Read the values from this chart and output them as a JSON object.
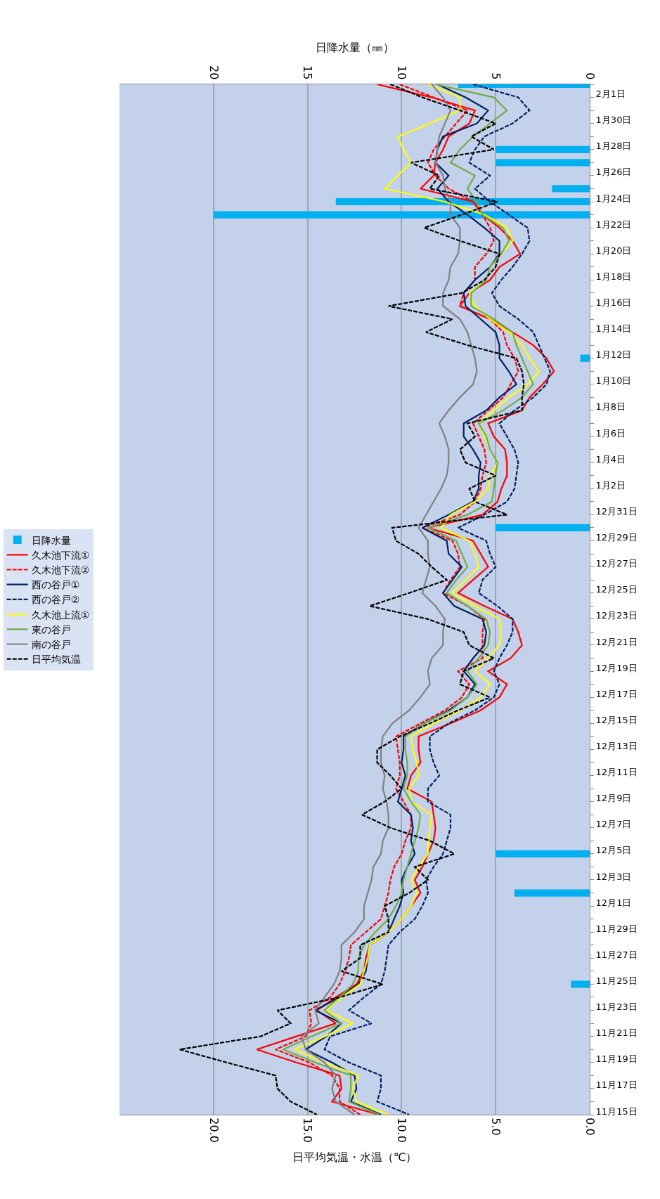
{
  "chart_data": {
    "type": "line",
    "orientation": "horizontal",
    "xlabel": "日平均気温・水温（℃）",
    "x2label": "日降水量（㎜）",
    "categories": [
      null,
      "2月1日",
      null,
      "1月30日",
      null,
      "1月28日",
      null,
      "1月26日",
      null,
      "1月24日",
      null,
      "1月22日",
      null,
      "1月20日",
      null,
      "1月18日",
      null,
      "1月16日",
      null,
      "1月14日",
      null,
      "1月12日",
      null,
      "1月10日",
      null,
      "1月8日",
      null,
      "1月6日",
      null,
      "1月4日",
      null,
      "1月2日",
      null,
      "12月31日",
      null,
      "12月29日",
      null,
      "12月27日",
      null,
      "12月25日",
      null,
      "12月23日",
      null,
      "12月21日",
      null,
      "12月19日",
      null,
      "12月17日",
      null,
      "12月15日",
      null,
      "12月13日",
      null,
      "12月11日",
      null,
      "12月9日",
      null,
      "12月7日",
      null,
      "12月5日",
      null,
      "12月3日",
      null,
      "12月1日",
      null,
      "11月29日",
      null,
      "11月27日",
      null,
      "11月25日",
      null,
      "11月23日",
      null,
      "11月21日",
      null,
      "11月19日",
      null,
      "11月17日",
      null,
      "11月15日"
    ],
    "xlim": [
      25,
      0
    ],
    "xticks": [
      {
        "value": 20,
        "label": "20.0"
      },
      {
        "value": 15,
        "label": "15.0"
      },
      {
        "value": 10,
        "label": "10.0"
      },
      {
        "value": 5,
        "label": "5.0"
      },
      {
        "value": 0,
        "label": "0.0"
      }
    ],
    "x2lim": [
      25,
      0
    ],
    "x2ticks": [
      20,
      15,
      10,
      5,
      0
    ],
    "grid": "x",
    "legend": "left",
    "marker": "none",
    "series": [
      {
        "name": "日降水量",
        "type": "bar",
        "axis": "x2",
        "color": "#00b0f0",
        "values": [
          7.0,
          null,
          null,
          null,
          null,
          5.0,
          5.0,
          null,
          2.0,
          13.5,
          20.0,
          null,
          null,
          null,
          null,
          null,
          null,
          null,
          null,
          null,
          null,
          0.5,
          null,
          null,
          null,
          null,
          null,
          null,
          null,
          null,
          null,
          null,
          null,
          null,
          5.0,
          null,
          null,
          null,
          null,
          null,
          null,
          null,
          null,
          null,
          null,
          null,
          null,
          null,
          null,
          null,
          null,
          null,
          null,
          null,
          null,
          null,
          null,
          null,
          null,
          5.0,
          null,
          null,
          4.0,
          null,
          null,
          null,
          null,
          null,
          null,
          1.0,
          null,
          null,
          null,
          null,
          null,
          null,
          null,
          null,
          null,
          null
        ]
      },
      {
        "name": "久木池下流①",
        "color": "#ff0000",
        "line_style": "solid",
        "values": [
          11.3,
          8.4,
          6.1,
          6.4,
          7.5,
          7.8,
          8.2,
          8.3,
          9.0,
          6.2,
          5.7,
          4.8,
          4.1,
          3.7,
          4.8,
          5.3,
          6.4,
          6.9,
          5.3,
          4.1,
          3.0,
          2.3,
          1.9,
          2.5,
          3.2,
          3.6,
          5.4,
          5.1,
          4.5,
          4.4,
          4.4,
          4.7,
          4.9,
          5.7,
          8.6,
          6.2,
          5.8,
          5.4,
          6.2,
          7.0,
          5.6,
          4.1,
          3.8,
          3.6,
          4.2,
          5.4,
          4.4,
          4.8,
          5.8,
          7.4,
          9.1,
          9.1,
          9.0,
          9.5,
          9.7,
          8.4,
          8.3,
          8.2,
          8.3,
          8.6,
          8.9,
          9.3,
          9.0,
          9.5,
          10.0,
          10.7,
          11.7,
          11.9,
          12.0,
          12.4,
          13.5,
          14.5,
          13.5,
          15.6,
          17.7,
          15.6,
          13.3,
          13.2,
          13.7,
          11.2
        ]
      },
      {
        "name": "久木池下流②",
        "color": "#ff0000",
        "line_style": "dashed",
        "values": [
          10.1,
          8.3,
          6.5,
          7.1,
          7.7,
          8.3,
          8.6,
          8.2,
          7.5,
          6.2,
          5.7,
          5.3,
          5.1,
          5.5,
          6.1,
          6.1,
          6.7,
          6.9,
          5.3,
          4.6,
          4.4,
          4.0,
          3.8,
          4.2,
          4.6,
          5.4,
          6.2,
          5.9,
          5.6,
          5.5,
          5.7,
          5.8,
          6.1,
          6.9,
          8.9,
          7.3,
          7.0,
          6.9,
          7.4,
          7.8,
          6.5,
          5.6,
          5.7,
          5.7,
          5.7,
          7.0,
          6.4,
          6.8,
          7.7,
          9.0,
          10.3,
          10.2,
          10.1,
          10.1,
          10.3,
          9.9,
          9.5,
          9.5,
          9.8,
          10.0,
          10.4,
          10.6,
          10.7,
          10.9,
          11.1,
          11.9,
          12.7,
          12.8,
          13.0,
          13.3,
          13.8,
          14.9,
          14.8,
          15.1,
          16.7,
          14.9,
          13.7,
          13.3,
          13.3,
          12.2
        ]
      },
      {
        "name": "西の谷戸①",
        "color": "#002060",
        "line_style": "solid",
        "values": [
          8.1,
          6.6,
          5.4,
          6.0,
          7.8,
          8.1,
          8.2,
          7.5,
          8.1,
          7.5,
          6.5,
          5.6,
          4.8,
          4.8,
          5.3,
          6.1,
          6.7,
          6.6,
          5.8,
          5.0,
          4.8,
          4.8,
          4.3,
          3.9,
          4.8,
          5.5,
          6.7,
          6.7,
          6.2,
          5.8,
          5.9,
          5.9,
          6.2,
          7.5,
          8.9,
          7.6,
          7.5,
          6.8,
          7.3,
          7.8,
          7.2,
          5.7,
          5.5,
          5.6,
          6.2,
          6.7,
          6.1,
          6.5,
          7.5,
          8.8,
          9.9,
          9.9,
          10.0,
          9.8,
          10.0,
          10.2,
          9.5,
          9.4,
          9.5,
          9.3,
          9.7,
          10.0,
          9.9,
          10.1,
          10.4,
          10.7,
          11.7,
          11.8,
          11.9,
          12.3,
          13.3,
          14.6,
          13.2,
          14.0,
          15.1,
          13.7,
          12.5,
          12.4,
          12.7,
          11.1
        ]
      },
      {
        "name": "西の谷戸②",
        "color": "#002060",
        "line_style": "dashed",
        "values": [
          6.2,
          3.8,
          3.2,
          4.1,
          5.6,
          6.1,
          6.4,
          5.3,
          6.1,
          5.3,
          4.3,
          3.3,
          3.2,
          3.6,
          4.1,
          4.7,
          5.2,
          4.8,
          3.8,
          3.0,
          2.7,
          2.4,
          2.1,
          2.3,
          3.0,
          4.0,
          4.8,
          4.4,
          4.0,
          3.8,
          3.9,
          4.0,
          4.4,
          5.6,
          7.0,
          5.5,
          5.3,
          5.0,
          5.7,
          5.9,
          4.9,
          4.1,
          4.1,
          4.4,
          4.8,
          5.1,
          4.8,
          5.1,
          6.1,
          7.5,
          8.5,
          8.5,
          8.3,
          8.0,
          8.6,
          8.6,
          7.4,
          7.4,
          7.6,
          7.8,
          8.3,
          8.7,
          8.6,
          8.9,
          9.3,
          10.1,
          10.7,
          10.8,
          10.9,
          11.1,
          12.0,
          12.8,
          11.6,
          13.8,
          14.1,
          12.8,
          11.1,
          11.1,
          11.3,
          9.6
        ]
      },
      {
        "name": "久木池上流①",
        "color": "#ffff00",
        "line_style": "solid",
        "values": [
          8.6,
          6.9,
          6.9,
          8.5,
          10.2,
          9.9,
          9.5,
          10.2,
          10.9,
          7.7,
          5.6,
          4.4,
          4.1,
          4.7,
          5.3,
          5.5,
          6.4,
          6.1,
          5.3,
          4.3,
          3.6,
          3.2,
          2.7,
          3.3,
          4.3,
          5.1,
          5.9,
          5.6,
          5.3,
          4.9,
          5.3,
          5.4,
          6.1,
          7.4,
          7.9,
          6.4,
          6.1,
          5.9,
          6.6,
          7.3,
          6.1,
          4.8,
          4.7,
          4.8,
          5.4,
          6.1,
          5.3,
          5.8,
          6.9,
          8.3,
          9.5,
          9.4,
          9.2,
          9.1,
          9.6,
          9.5,
          8.4,
          8.5,
          8.6,
          8.6,
          9.1,
          9.5,
          9.2,
          9.5,
          10.0,
          10.7,
          11.7,
          11.8,
          12.0,
          12.2,
          13.2,
          14.0,
          12.6,
          14.1,
          15.7,
          14.1,
          12.3,
          12.6,
          12.4,
          10.7
        ]
      },
      {
        "name": "東の谷戸",
        "color": "#70ad47",
        "line_style": "solid",
        "values": [
          8.2,
          5.1,
          4.4,
          5.3,
          6.2,
          6.9,
          7.4,
          6.1,
          6.5,
          6.0,
          5.7,
          4.6,
          4.3,
          4.7,
          5.3,
          5.5,
          6.3,
          6.3,
          5.1,
          4.1,
          3.9,
          3.6,
          3.3,
          3.0,
          3.6,
          4.6,
          5.9,
          5.5,
          5.3,
          4.9,
          5.0,
          5.1,
          5.2,
          6.5,
          8.6,
          7.1,
          6.8,
          6.5,
          7.1,
          7.6,
          6.5,
          5.5,
          5.3,
          5.4,
          5.9,
          6.5,
          6.0,
          6.5,
          7.4,
          8.8,
          9.8,
          9.8,
          9.7,
          9.7,
          9.9,
          9.5,
          9.0,
          9.1,
          9.3,
          9.5,
          9.7,
          9.9,
          10.0,
          10.3,
          10.7,
          11.4,
          12.0,
          12.3,
          12.3,
          12.6,
          13.3,
          14.1,
          13.2,
          14.8,
          16.3,
          14.6,
          12.7,
          12.7,
          12.8,
          11.2
        ]
      },
      {
        "name": "南の谷戸",
        "color": "#808080",
        "line_style": "solid",
        "values": [
          8.4,
          7.8,
          7.4,
          7.7,
          8.0,
          8.1,
          8.2,
          7.8,
          7.7,
          7.4,
          7.4,
          6.9,
          6.9,
          7.0,
          7.4,
          7.5,
          7.8,
          7.8,
          6.9,
          6.5,
          6.3,
          6.1,
          6.0,
          6.2,
          6.9,
          7.5,
          8.0,
          7.7,
          7.5,
          7.5,
          7.6,
          7.9,
          8.3,
          8.7,
          9.1,
          8.6,
          8.6,
          8.5,
          8.7,
          8.9,
          8.2,
          7.7,
          7.8,
          7.8,
          8.4,
          8.6,
          8.5,
          9.0,
          9.6,
          10.5,
          11.0,
          11.1,
          11.1,
          10.9,
          11.0,
          10.8,
          10.7,
          10.7,
          11.0,
          11.1,
          11.5,
          11.6,
          11.8,
          12.0,
          12.0,
          12.5,
          13.2,
          13.2,
          13.3,
          13.6,
          14.1,
          14.6,
          14.4,
          15.3,
          15.1,
          14.1,
          13.5,
          13.7,
          13.5,
          12.5
        ]
      },
      {
        "name": "日平均気温",
        "color": "#000000",
        "line_style": "dashed",
        "values": [
          10.6,
          8.9,
          6.9,
          5.0,
          6.3,
          5.1,
          9.5,
          8.0,
          8.5,
          4.9,
          6.8,
          8.8,
          6.9,
          4.8,
          5.0,
          5.6,
          6.8,
          10.7,
          7.3,
          8.7,
          6.5,
          3.9,
          3.6,
          3.5,
          3.6,
          3.6,
          6.5,
          6.1,
          6.9,
          6.6,
          5.0,
          6.4,
          6.1,
          4.4,
          10.5,
          10.3,
          9.1,
          8.4,
          7.6,
          9.6,
          11.7,
          8.6,
          6.7,
          6.4,
          5.1,
          6.7,
          6.9,
          5.3,
          7.0,
          8.5,
          10.1,
          11.3,
          11.3,
          10.6,
          10.0,
          10.9,
          12.1,
          10.6,
          8.5,
          7.2,
          9.3,
          8.6,
          9.6,
          10.9,
          10.7,
          10.7,
          12.2,
          12.2,
          13.2,
          11.0,
          13.3,
          16.6,
          15.9,
          17.5,
          21.8,
          19.3,
          16.7,
          16.6,
          15.9,
          14.5
        ]
      }
    ]
  }
}
